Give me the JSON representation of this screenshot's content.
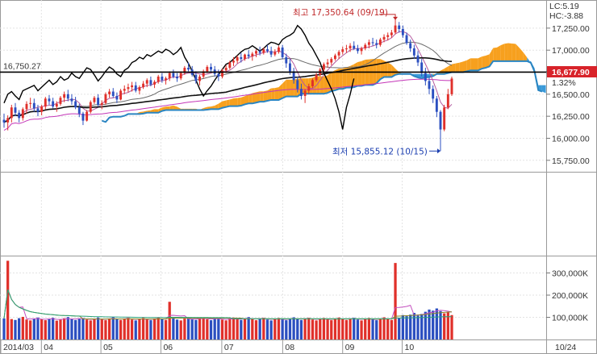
{
  "chart_data": [
    {
      "type": "candlestick",
      "panel": "price",
      "ylim": [
        15620,
        17560
      ],
      "y_ticks": [
        15750,
        16000,
        16250,
        16500,
        16750,
        17000,
        17250
      ],
      "y_tick_labels": [
        "15,750.00",
        "16,000.00",
        "16,250.00",
        "16,500.00",
        "16,750.00",
        "17,000.00",
        "17,250.00"
      ],
      "x_labels": [
        "2014/03",
        "04",
        "05",
        "06",
        "07",
        "08",
        "09",
        "10",
        "10/24"
      ],
      "current_price_label": "16,677.90",
      "change_label": "1.32%",
      "lc_label": "LC:5.19",
      "hc_label": "HC:-3.88",
      "reference_line": {
        "value": 16750.27,
        "label": "16,750.27"
      },
      "high_annotation": {
        "label": "최고 17,350.64 (09/19)",
        "value": 17350.64
      },
      "low_annotation": {
        "label": "최저 15,855.12 (10/15)",
        "value": 15855.12
      },
      "colors": {
        "up": "#e0302a",
        "down": "#2b4fc0",
        "cloud_bull": "#f7a01e",
        "cloud_bear": "#3a9ad9",
        "long_ma": "#c436b8",
        "ref_line": "#000000"
      },
      "candles": [
        [
          16210,
          16280,
          16120,
          16180
        ],
        [
          16180,
          16260,
          16090,
          16230
        ],
        [
          16230,
          16380,
          16180,
          16350
        ],
        [
          16350,
          16400,
          16250,
          16290
        ],
        [
          16290,
          16320,
          16180,
          16230
        ],
        [
          16230,
          16350,
          16200,
          16330
        ],
        [
          16330,
          16420,
          16280,
          16390
        ],
        [
          16390,
          16460,
          16340,
          16400
        ],
        [
          16400,
          16450,
          16300,
          16340
        ],
        [
          16340,
          16380,
          16250,
          16300
        ],
        [
          16300,
          16380,
          16260,
          16360
        ],
        [
          16360,
          16470,
          16330,
          16450
        ],
        [
          16450,
          16490,
          16380,
          16420
        ],
        [
          16420,
          16460,
          16340,
          16360
        ],
        [
          16360,
          16420,
          16300,
          16390
        ],
        [
          16390,
          16480,
          16370,
          16460
        ],
        [
          16460,
          16530,
          16410,
          16500
        ],
        [
          16500,
          16550,
          16420,
          16450
        ],
        [
          16450,
          16500,
          16380,
          16420
        ],
        [
          16420,
          16470,
          16330,
          16350
        ],
        [
          16350,
          16390,
          16240,
          16280
        ],
        [
          16280,
          16300,
          16150,
          16200
        ],
        [
          16200,
          16320,
          16190,
          16300
        ],
        [
          16300,
          16430,
          16280,
          16410
        ],
        [
          16410,
          16480,
          16390,
          16460
        ],
        [
          16460,
          16500,
          16360,
          16380
        ],
        [
          16380,
          16430,
          16330,
          16400
        ],
        [
          16400,
          16520,
          16380,
          16500
        ],
        [
          16500,
          16560,
          16460,
          16530
        ],
        [
          16530,
          16570,
          16460,
          16480
        ],
        [
          16480,
          16520,
          16400,
          16440
        ],
        [
          16440,
          16560,
          16430,
          16540
        ],
        [
          16540,
          16600,
          16500,
          16560
        ],
        [
          16560,
          16620,
          16520,
          16580
        ],
        [
          16580,
          16640,
          16530,
          16600
        ],
        [
          16600,
          16640,
          16520,
          16540
        ],
        [
          16540,
          16600,
          16500,
          16580
        ],
        [
          16580,
          16650,
          16560,
          16620
        ],
        [
          16620,
          16680,
          16580,
          16660
        ],
        [
          16660,
          16700,
          16590,
          16610
        ],
        [
          16610,
          16660,
          16570,
          16640
        ],
        [
          16640,
          16720,
          16620,
          16700
        ],
        [
          16700,
          16740,
          16630,
          16660
        ],
        [
          16660,
          16700,
          16610,
          16680
        ],
        [
          16680,
          16760,
          16650,
          16740
        ],
        [
          16740,
          16780,
          16680,
          16700
        ],
        [
          16700,
          16740,
          16640,
          16680
        ],
        [
          16680,
          16760,
          16660,
          16740
        ],
        [
          16740,
          16820,
          16720,
          16800
        ],
        [
          16800,
          16860,
          16760,
          16780
        ],
        [
          16780,
          16820,
          16700,
          16720
        ],
        [
          16720,
          16760,
          16620,
          16650
        ],
        [
          16650,
          16720,
          16600,
          16700
        ],
        [
          16700,
          16780,
          16680,
          16760
        ],
        [
          16760,
          16830,
          16740,
          16810
        ],
        [
          16810,
          16850,
          16750,
          16780
        ],
        [
          16780,
          16820,
          16700,
          16730
        ],
        [
          16730,
          16780,
          16650,
          16700
        ],
        [
          16700,
          16790,
          16680,
          16770
        ],
        [
          16770,
          16830,
          16740,
          16800
        ],
        [
          16800,
          16880,
          16780,
          16860
        ],
        [
          16860,
          16920,
          16820,
          16880
        ],
        [
          16880,
          16940,
          16850,
          16920
        ],
        [
          16920,
          16970,
          16860,
          16900
        ],
        [
          16900,
          16960,
          16880,
          16950
        ],
        [
          16950,
          17000,
          16900,
          16930
        ],
        [
          16930,
          16980,
          16880,
          16960
        ],
        [
          16960,
          17010,
          16920,
          16990
        ],
        [
          16990,
          17040,
          16940,
          16970
        ],
        [
          16970,
          17030,
          16950,
          17010
        ],
        [
          17010,
          17060,
          16970,
          16990
        ],
        [
          16990,
          17040,
          16920,
          16950
        ],
        [
          16950,
          17010,
          16930,
          16980
        ],
        [
          16980,
          17050,
          16960,
          17030
        ],
        [
          17030,
          17060,
          16900,
          16920
        ],
        [
          16920,
          16960,
          16800,
          16850
        ],
        [
          16850,
          16900,
          16720,
          16760
        ],
        [
          16760,
          16800,
          16620,
          16660
        ],
        [
          16660,
          16700,
          16520,
          16560
        ],
        [
          16560,
          16620,
          16440,
          16480
        ],
        [
          16480,
          16560,
          16400,
          16540
        ],
        [
          16540,
          16620,
          16500,
          16590
        ],
        [
          16590,
          16680,
          16570,
          16660
        ],
        [
          16660,
          16740,
          16640,
          16720
        ],
        [
          16720,
          16800,
          16700,
          16780
        ],
        [
          16780,
          16860,
          16760,
          16840
        ],
        [
          16840,
          16900,
          16800,
          16860
        ],
        [
          16860,
          16920,
          16830,
          16900
        ],
        [
          16900,
          16960,
          16880,
          16940
        ],
        [
          16940,
          17000,
          16900,
          16980
        ],
        [
          16980,
          17040,
          16950,
          17010
        ],
        [
          17010,
          17060,
          16970,
          17020
        ],
        [
          17020,
          17080,
          16980,
          17050
        ],
        [
          17050,
          17100,
          17000,
          17020
        ],
        [
          17020,
          17060,
          16960,
          16990
        ],
        [
          16990,
          17040,
          16950,
          17020
        ],
        [
          17020,
          17080,
          17000,
          17060
        ],
        [
          17060,
          17120,
          17020,
          17090
        ],
        [
          17090,
          17140,
          17050,
          17080
        ],
        [
          17080,
          17120,
          17020,
          17060
        ],
        [
          17060,
          17140,
          17040,
          17120
        ],
        [
          17120,
          17180,
          17090,
          17150
        ],
        [
          17150,
          17200,
          17110,
          17170
        ],
        [
          17170,
          17230,
          17140,
          17200
        ],
        [
          17200,
          17350,
          17180,
          17280
        ],
        [
          17280,
          17320,
          17200,
          17240
        ],
        [
          17240,
          17280,
          17140,
          17170
        ],
        [
          17170,
          17200,
          17060,
          17080
        ],
        [
          17080,
          17120,
          16980,
          17020
        ],
        [
          17020,
          17060,
          16900,
          16940
        ],
        [
          16940,
          16990,
          16820,
          16860
        ],
        [
          16860,
          16900,
          16700,
          16740
        ],
        [
          16740,
          16800,
          16600,
          16650
        ],
        [
          16650,
          16700,
          16500,
          16560
        ],
        [
          16560,
          16600,
          16400,
          16450
        ],
        [
          16450,
          16480,
          16240,
          16300
        ],
        [
          16300,
          16320,
          15855,
          16100
        ],
        [
          16100,
          16380,
          16080,
          16350
        ],
        [
          16350,
          16560,
          16330,
          16500
        ],
        [
          16500,
          16700,
          16480,
          16678
        ]
      ],
      "volume_panel": {
        "ylim": [
          0,
          360000
        ],
        "y_ticks": [
          100000,
          200000,
          300000
        ],
        "y_tick_labels": [
          "100,000K",
          "200,000K",
          "300,000K"
        ],
        "volumes": [
          95000,
          355000,
          92000,
          88000,
          96000,
          102000,
          90000,
          86000,
          94000,
          99000,
          91000,
          87000,
          93000,
          98000,
          85000,
          89000,
          96000,
          101000,
          92000,
          88000,
          94000,
          97000,
          90000,
          86000,
          93000,
          99000,
          91000,
          87000,
          95000,
          100000,
          92000,
          88000,
          94000,
          98000,
          90000,
          86000,
          93000,
          97000,
          91000,
          87000,
          95000,
          99000,
          92000,
          88000,
          170000,
          96000,
          90000,
          86000,
          94000,
          98000,
          92000,
          88000,
          96000,
          100000,
          91000,
          87000,
          93000,
          97000,
          90000,
          86000,
          94000,
          99000,
          92000,
          88000,
          96000,
          101000,
          91000,
          87000,
          95000,
          98000,
          90000,
          86000,
          93000,
          97000,
          91000,
          87000,
          95000,
          100000,
          92000,
          88000,
          94000,
          98000,
          90000,
          86000,
          93000,
          97000,
          91000,
          87000,
          95000,
          99000,
          92000,
          88000,
          94000,
          98000,
          90000,
          86000,
          93000,
          97000,
          91000,
          87000,
          95000,
          100000,
          92000,
          88000,
          345000,
          98000,
          110000,
          105000,
          112000,
          120000,
          108000,
          115000,
          125000,
          135000,
          130000,
          140000,
          128000,
          118000,
          122000,
          110000
        ]
      }
    }
  ]
}
